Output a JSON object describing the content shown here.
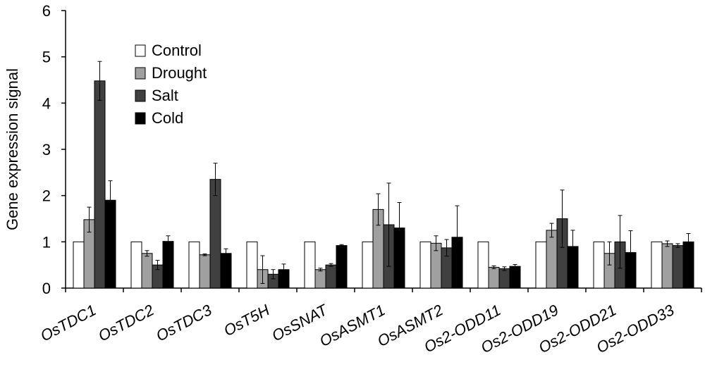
{
  "chart_data": {
    "type": "bar",
    "title": "",
    "xlabel": "",
    "ylabel": "Gene expression signal",
    "ylim": [
      0,
      6
    ],
    "yticks": [
      0,
      1,
      2,
      3,
      4,
      5,
      6
    ],
    "grid": false,
    "legend_position": "top-left",
    "categories": [
      "OsTDC1",
      "OsTDC2",
      "OsTDC3",
      "OsT5H",
      "OsSNAT",
      "OsASMT1",
      "OsASMT2",
      "Os2-ODD11",
      "Os2-ODD19",
      "Os2-ODD21",
      "Os2-ODD33"
    ],
    "series": [
      {
        "name": "Control",
        "color": "#ffffff",
        "values": [
          1,
          1,
          1,
          1,
          1,
          1,
          1,
          1,
          1,
          1,
          1
        ],
        "errors": [
          0,
          0,
          0,
          0,
          0,
          0,
          0,
          0,
          0,
          0,
          0
        ]
      },
      {
        "name": "Drought",
        "color": "#a0a0a0",
        "values": [
          1.48,
          0.75,
          0.72,
          0.4,
          0.4,
          1.7,
          0.97,
          0.45,
          1.25,
          0.75,
          0.96
        ],
        "errors": [
          0.27,
          0.06,
          0.02,
          0.3,
          0.03,
          0.34,
          0.16,
          0.03,
          0.15,
          0.25,
          0.06
        ]
      },
      {
        "name": "Salt",
        "color": "#404040",
        "values": [
          4.48,
          0.5,
          2.35,
          0.3,
          0.5,
          1.37,
          0.87,
          0.42,
          1.5,
          1.0,
          0.92
        ],
        "errors": [
          0.42,
          0.1,
          0.35,
          0.1,
          0.03,
          0.9,
          0.18,
          0.04,
          0.62,
          0.57,
          0.04
        ]
      },
      {
        "name": "Cold",
        "color": "#000000",
        "values": [
          1.9,
          1.01,
          0.75,
          0.4,
          0.92,
          1.3,
          1.1,
          0.47,
          0.9,
          0.77,
          1.0
        ],
        "errors": [
          0.42,
          0.12,
          0.1,
          0.12,
          0.02,
          0.55,
          0.68,
          0.04,
          0.35,
          0.47,
          0.18
        ]
      }
    ]
  }
}
